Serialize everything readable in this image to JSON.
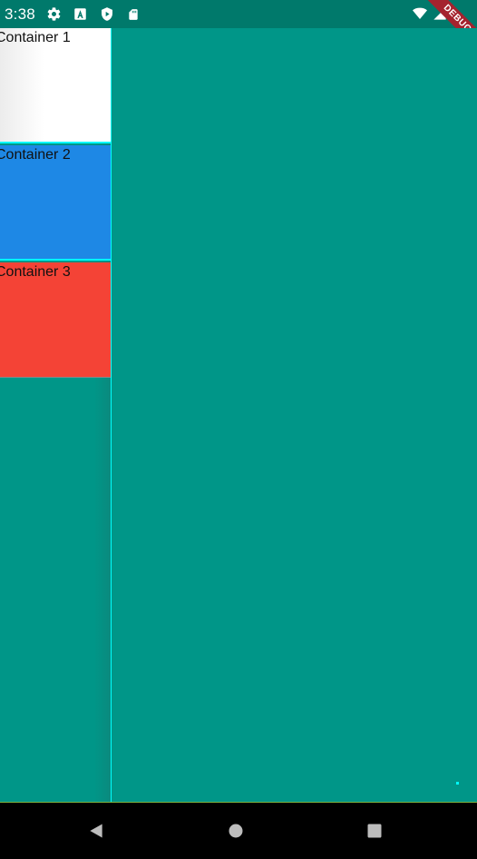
{
  "status_bar": {
    "time": "3:38",
    "icons_left": [
      "settings-icon",
      "keyboard-a-icon",
      "shield-play-icon",
      "sd-card-icon"
    ],
    "icons_right": [
      "wifi-icon",
      "cell-signal-icon"
    ]
  },
  "debug_banner": {
    "label": "DEBUG",
    "color": "#A4232E"
  },
  "containers": [
    {
      "label": "Container 1",
      "color": "#FFFFFF"
    },
    {
      "label": "Container 2",
      "color": "#1E88E5"
    },
    {
      "label": "Container 3",
      "color": "#F44336"
    }
  ],
  "colors": {
    "background": "#009688",
    "status_bar": "#00796B",
    "divider": "#00FFFF",
    "nav_bar": "#000000"
  },
  "nav_bar": {
    "buttons": [
      "back-icon",
      "home-icon",
      "recents-icon"
    ]
  }
}
